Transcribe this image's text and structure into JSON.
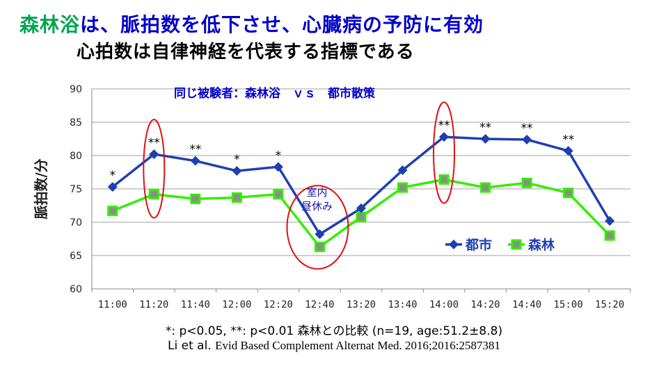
{
  "slide": {
    "title_line1_green": "森林浴",
    "title_line1_blue": "は、脈拍数を低下させ、心臓病の予防に有効",
    "title_line2": "心拍数は自律神経を代表する指標である",
    "footnote": "*: p<0.05, **: p<0.01 森林との比較 (n=19, age:51.2±8.8)",
    "citation_authors": "Li et al.",
    "citation_journal": "Evid Based Complement Alternat Med. 2016;2016:2587381"
  },
  "colors": {
    "title_green": "#00a651",
    "title_blue": "#0000cc",
    "city": "#1f3fb0",
    "forest": "#33ee00",
    "highlight": "#e01010",
    "annotation": "#1a1aaa"
  },
  "chart_data": {
    "type": "line",
    "subtitle": "同じ被験者：森林浴　ｖｓ　都市散策",
    "ylabel": "脈拍数/分",
    "ylim": [
      60,
      90
    ],
    "yticks": [
      60,
      65,
      70,
      75,
      80,
      85,
      90
    ],
    "grid": true,
    "legend_position": "bottom-right",
    "categories": [
      "11:00",
      "11:20",
      "11:40",
      "12:00",
      "12:20",
      "12:40",
      "13:20",
      "13:40",
      "14:00",
      "14:20",
      "14:40",
      "15:00",
      "15:20"
    ],
    "series": [
      {
        "name": "都市",
        "marker": "diamond",
        "values": [
          75.3,
          80.2,
          79.2,
          77.7,
          78.3,
          68.2,
          72.1,
          77.8,
          82.8,
          82.5,
          82.4,
          80.7,
          70.2
        ]
      },
      {
        "name": "森林",
        "marker": "square",
        "values": [
          71.7,
          74.2,
          73.5,
          73.7,
          74.2,
          66.3,
          70.8,
          75.2,
          76.4,
          75.2,
          75.9,
          74.4,
          68.0
        ]
      }
    ],
    "significance": [
      "*",
      "**",
      "**",
      "*",
      "*",
      "",
      "",
      "",
      "**",
      "**",
      "**",
      "**",
      ""
    ],
    "highlighted_categories": [
      "11:20",
      "12:40",
      "14:00"
    ],
    "annotation": {
      "category": "12:40",
      "lines": [
        "室内",
        "昼休み"
      ]
    }
  }
}
